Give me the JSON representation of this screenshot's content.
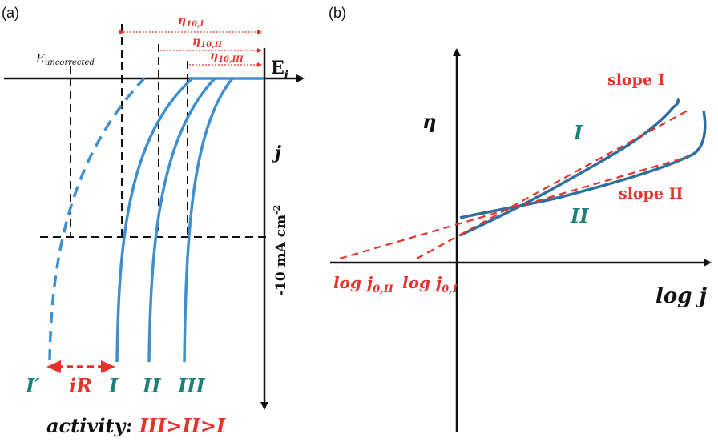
{
  "colors": {
    "curve": "#3d8fcf",
    "curve_dark": "#2f6f9e",
    "red": "#e8312a",
    "teal": "#1c7f78",
    "black": "#111111"
  },
  "panel_a": {
    "label": "(a)",
    "e_uncorrected": "E",
    "e_uncorrected_sub": "uncorrected",
    "e_i": "E",
    "e_i_sub": "i",
    "j_label": "j",
    "current_label": "-10 mA cm",
    "current_sup": "-2",
    "eta1": "η",
    "eta1_sub": "10,I",
    "eta2": "η",
    "eta2_sub": "10,II",
    "eta3": "η",
    "eta3_sub": "10,III",
    "curve_labels": [
      "I′",
      "I",
      "II",
      "III"
    ],
    "ir_label": "iR",
    "activity_prefix": "activity: ",
    "activity_order": "III>II>I"
  },
  "panel_b": {
    "label": "(b)",
    "eta_label": "η",
    "x_label": "log j",
    "slope1": "slope I",
    "slope2": "slope II",
    "curve1": "I",
    "curve2": "II",
    "log_j0_2": "log j",
    "log_j0_2_sub": "0,II",
    "log_j0_1": "log j",
    "log_j0_1_sub": "0,I"
  }
}
